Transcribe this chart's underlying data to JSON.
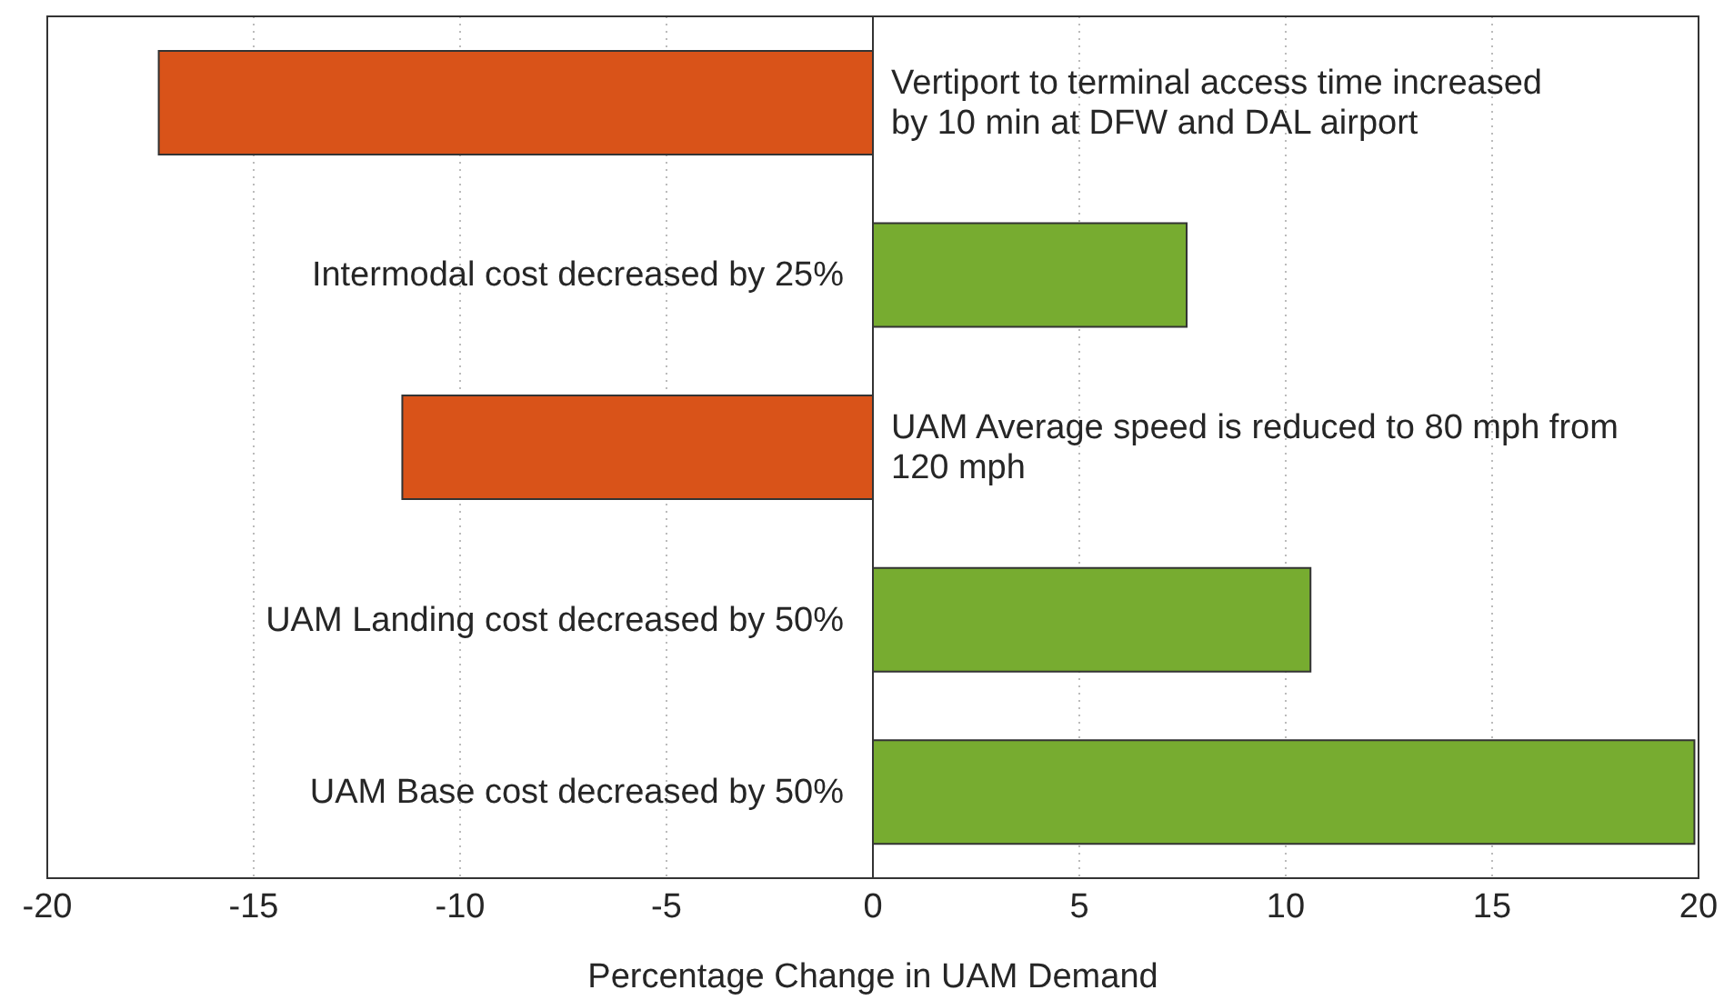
{
  "chart_data": {
    "type": "bar",
    "orientation": "horizontal",
    "xlabel": "Percentage Change in UAM Demand",
    "categories": [
      "Vertiport to terminal access time increased by 10 min at DFW and DAL airport",
      "Intermodal cost decreased by 25%",
      "UAM Average speed is reduced to 80 mph from 120 mph",
      "UAM Landing cost decreased by 50%",
      "UAM Base cost decreased by 50%"
    ],
    "values": [
      -17.3,
      7.6,
      -11.4,
      10.6,
      19.9
    ],
    "colors": [
      "#d95319",
      "#77ac30",
      "#d95319",
      "#77ac30",
      "#77ac30"
    ],
    "xlim": [
      -20,
      20
    ],
    "xticks": [
      -20,
      -15,
      -10,
      -5,
      0,
      5,
      10,
      15,
      20
    ],
    "grid": "x"
  }
}
